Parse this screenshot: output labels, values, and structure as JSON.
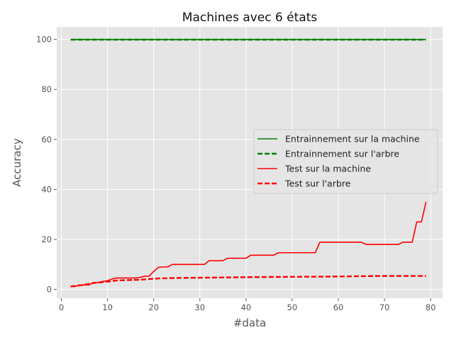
{
  "chart_data": {
    "type": "line",
    "title": "Machines avec 6 états",
    "xlabel": "#data",
    "ylabel": "Accuracy",
    "xlim": [
      -1,
      82.6
    ],
    "ylim": [
      -3.5,
      105
    ],
    "xticks": [
      0,
      10,
      20,
      30,
      40,
      50,
      60,
      70,
      80
    ],
    "yticks": [
      0,
      20,
      40,
      60,
      80,
      100
    ],
    "grid": true,
    "legend_position": "center-right",
    "series": [
      {
        "name": "Entrainnement sur la machine",
        "color": "#008000",
        "style": "solid",
        "x": [
          2,
          79
        ],
        "y": [
          100,
          100
        ]
      },
      {
        "name": "Entrainnement sur l'arbre",
        "color": "#008000",
        "style": "dashed",
        "x": [
          2,
          79
        ],
        "y": [
          99.9,
          99.9
        ]
      },
      {
        "name": "Test sur la machine",
        "color": "#ff0000",
        "style": "solid",
        "x": [
          2,
          3,
          4,
          5,
          6,
          7,
          8,
          9,
          10,
          11,
          12,
          13,
          14,
          15,
          16,
          17,
          18,
          19,
          20,
          21,
          22,
          23,
          24,
          25,
          30,
          31,
          32,
          33,
          34,
          35,
          36,
          40,
          41,
          42,
          46,
          47,
          48,
          55,
          56,
          57,
          65,
          66,
          67,
          73,
          74,
          76,
          77,
          78,
          79
        ],
        "y": [
          1.2,
          1.2,
          1.8,
          1.8,
          1.8,
          2.8,
          2.8,
          3.2,
          3.5,
          4.2,
          4.6,
          4.6,
          4.6,
          4.6,
          4.6,
          4.8,
          5.3,
          5.3,
          7.2,
          8.8,
          9.0,
          9.0,
          10.0,
          10.0,
          10.0,
          10.0,
          11.5,
          11.5,
          11.5,
          11.5,
          12.5,
          12.5,
          13.7,
          13.7,
          13.7,
          14.7,
          14.7,
          14.7,
          18.9,
          18.9,
          18.9,
          18.0,
          18.0,
          18.0,
          18.9,
          18.9,
          27.0,
          27.0,
          35.0
        ]
      },
      {
        "name": "Test sur l'arbre",
        "color": "#ff0000",
        "style": "dashed",
        "x": [
          2,
          3,
          5,
          7,
          10,
          12,
          17,
          21,
          25,
          35,
          45,
          55,
          65,
          70,
          79
        ],
        "y": [
          1.2,
          1.4,
          1.9,
          2.6,
          3.1,
          3.6,
          3.9,
          4.4,
          4.6,
          4.8,
          5.0,
          5.1,
          5.3,
          5.4,
          5.4
        ]
      }
    ]
  }
}
